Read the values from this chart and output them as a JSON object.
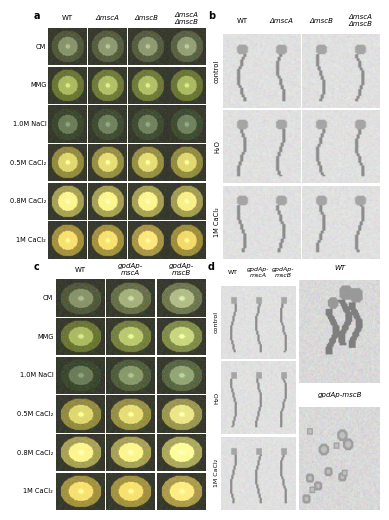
{
  "panel_labels": [
    "a",
    "b",
    "c",
    "d"
  ],
  "panel_a_col_headers": [
    "WT",
    "ΔmscA",
    "ΔmscB",
    "ΔmscA\nΔmscB"
  ],
  "panel_b_col_headers": [
    "WT",
    "ΔmscA",
    "ΔmscB",
    "ΔmscA\nΔmscB"
  ],
  "panel_c_col_headers": [
    "WT",
    "gpdAp-\nmscA",
    "gpdAp-\nmscB"
  ],
  "panel_d_col_headers": [
    "WT",
    "gpdAp-\nmscA",
    "gpdAp-\nmscB"
  ],
  "panel_a_row_labels": [
    "CM",
    "MMG",
    "1.0M NaCl",
    "0.5M CaCl₂",
    "0.8M CaCl₂",
    "1M CaCl₂"
  ],
  "panel_b_row_labels": [
    "control",
    "H₂O",
    "1M CaCl₂"
  ],
  "panel_c_row_labels": [
    "CM",
    "MMG",
    "1.0M NaCl",
    "0.5M CaCl₂",
    "0.8M CaCl₂",
    "1M CaCl₂"
  ],
  "panel_d_row_labels": [
    "control",
    "H₂O",
    "1M CaCl₂"
  ],
  "panel_d_extra_labels": [
    "WT",
    "gpdAp-mscB"
  ],
  "bg_color": "#ffffff",
  "colony_bg_dark": [
    0.25,
    0.27,
    0.22
  ],
  "colony_bg_medium": [
    0.45,
    0.47,
    0.35
  ],
  "colony_colors": [
    [
      [
        0.38,
        0.42,
        0.28
      ],
      [
        0.4,
        0.44,
        0.3
      ],
      [
        0.4,
        0.44,
        0.3
      ],
      [
        0.42,
        0.46,
        0.32
      ]
    ],
    [
      [
        0.5,
        0.55,
        0.25
      ],
      [
        0.52,
        0.57,
        0.27
      ],
      [
        0.52,
        0.57,
        0.27
      ],
      [
        0.5,
        0.55,
        0.25
      ]
    ],
    [
      [
        0.28,
        0.34,
        0.22
      ],
      [
        0.3,
        0.36,
        0.24
      ],
      [
        0.3,
        0.36,
        0.24
      ],
      [
        0.3,
        0.36,
        0.24
      ]
    ],
    [
      [
        0.68,
        0.65,
        0.3
      ],
      [
        0.7,
        0.67,
        0.32
      ],
      [
        0.7,
        0.67,
        0.32
      ],
      [
        0.68,
        0.65,
        0.3
      ]
    ],
    [
      [
        0.78,
        0.75,
        0.4
      ],
      [
        0.78,
        0.75,
        0.4
      ],
      [
        0.78,
        0.75,
        0.4
      ],
      [
        0.76,
        0.73,
        0.38
      ]
    ],
    [
      [
        0.76,
        0.68,
        0.3
      ],
      [
        0.76,
        0.68,
        0.3
      ],
      [
        0.78,
        0.7,
        0.34
      ],
      [
        0.74,
        0.66,
        0.28
      ]
    ]
  ],
  "colony_c_colors": [
    [
      [
        0.38,
        0.42,
        0.28
      ],
      [
        0.48,
        0.52,
        0.34
      ],
      [
        0.52,
        0.56,
        0.38
      ]
    ],
    [
      [
        0.5,
        0.55,
        0.25
      ],
      [
        0.55,
        0.6,
        0.3
      ],
      [
        0.6,
        0.65,
        0.35
      ]
    ],
    [
      [
        0.28,
        0.34,
        0.22
      ],
      [
        0.38,
        0.44,
        0.28
      ],
      [
        0.42,
        0.48,
        0.32
      ]
    ],
    [
      [
        0.68,
        0.65,
        0.3
      ],
      [
        0.7,
        0.67,
        0.32
      ],
      [
        0.72,
        0.7,
        0.38
      ]
    ],
    [
      [
        0.78,
        0.75,
        0.4
      ],
      [
        0.78,
        0.75,
        0.4
      ],
      [
        0.8,
        0.78,
        0.44
      ]
    ],
    [
      [
        0.76,
        0.68,
        0.3
      ],
      [
        0.76,
        0.68,
        0.3
      ],
      [
        0.8,
        0.72,
        0.36
      ]
    ]
  ],
  "header_fontsize": 5.0,
  "row_label_fontsize": 4.8,
  "panel_label_fontsize": 7,
  "italic_fontsize": 5.0
}
